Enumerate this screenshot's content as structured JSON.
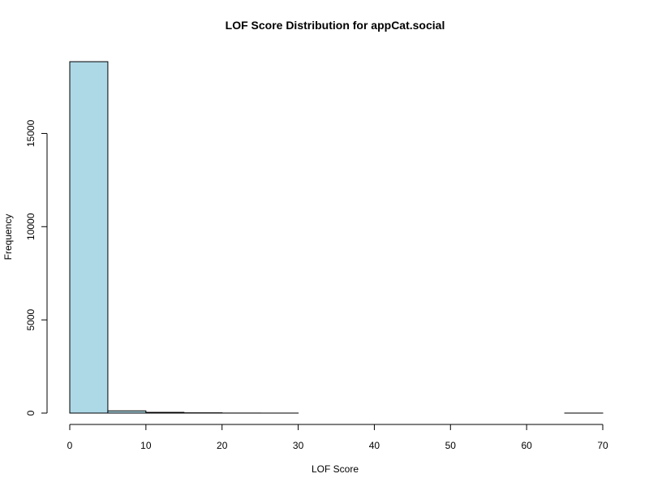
{
  "chart_data": {
    "type": "bar",
    "title": "LOF Score Distribution for appCat.social",
    "xlabel": "LOF Score",
    "ylabel": "Frequency",
    "bin_edges": [
      0,
      5,
      10,
      15,
      20,
      25,
      30,
      35,
      40,
      45,
      50,
      55,
      60,
      65,
      70
    ],
    "values": [
      18850,
      120,
      40,
      15,
      3,
      1,
      0,
      0,
      0,
      0,
      0,
      0,
      0,
      1
    ],
    "xlim": [
      0,
      70
    ],
    "ylim": [
      0,
      18850
    ],
    "x_ticks": [
      0,
      10,
      20,
      30,
      40,
      50,
      60,
      70
    ],
    "y_ticks": [
      0,
      5000,
      10000,
      15000
    ],
    "bar_fill": "#add8e6",
    "bar_stroke": "#000000",
    "grid": false,
    "legend": "none"
  }
}
